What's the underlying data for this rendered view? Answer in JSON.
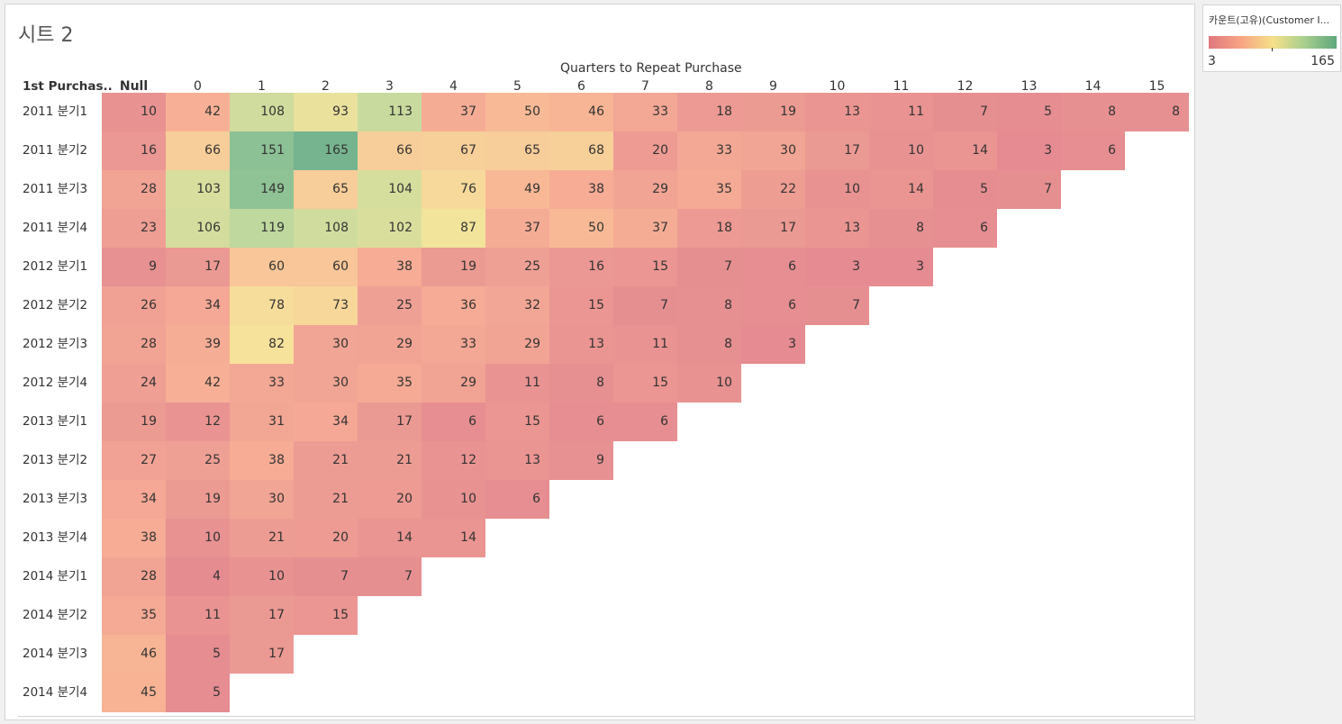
{
  "sheet": {
    "title": "시트 2"
  },
  "legend": {
    "title": "카운트(고유)(Customer I...",
    "min": "3",
    "max": "165"
  },
  "chart_data": {
    "type": "heatmap",
    "xlabel": "Quarters to Repeat Purchase",
    "ylabel": "1st Purchas..",
    "columns": [
      "Null",
      "0",
      "1",
      "2",
      "3",
      "4",
      "5",
      "6",
      "7",
      "8",
      "9",
      "10",
      "11",
      "12",
      "13",
      "14",
      "15"
    ],
    "rows": [
      "2011 분기1",
      "2011 분기2",
      "2011 분기3",
      "2011 분기4",
      "2012 분기1",
      "2012 분기2",
      "2012 분기3",
      "2012 분기4",
      "2013 분기1",
      "2013 분기2",
      "2013 분기3",
      "2013 분기4",
      "2014 분기1",
      "2014 분기2",
      "2014 분기3",
      "2014 분기4"
    ],
    "values": [
      [
        10,
        42,
        108,
        93,
        113,
        37,
        50,
        46,
        33,
        18,
        19,
        13,
        11,
        7,
        5,
        8,
        8
      ],
      [
        16,
        66,
        151,
        165,
        66,
        67,
        65,
        68,
        20,
        33,
        30,
        17,
        10,
        14,
        3,
        6
      ],
      [
        28,
        103,
        149,
        65,
        104,
        76,
        49,
        38,
        29,
        35,
        22,
        10,
        14,
        5,
        7
      ],
      [
        23,
        106,
        119,
        108,
        102,
        87,
        37,
        50,
        37,
        18,
        17,
        13,
        8,
        6
      ],
      [
        9,
        17,
        60,
        60,
        38,
        19,
        25,
        16,
        15,
        7,
        6,
        3,
        3
      ],
      [
        26,
        34,
        78,
        73,
        25,
        36,
        32,
        15,
        7,
        8,
        6,
        7
      ],
      [
        28,
        39,
        82,
        30,
        29,
        33,
        29,
        13,
        11,
        8,
        3
      ],
      [
        24,
        42,
        33,
        30,
        35,
        29,
        11,
        8,
        15,
        10
      ],
      [
        19,
        12,
        31,
        34,
        17,
        6,
        15,
        6,
        6
      ],
      [
        27,
        25,
        38,
        21,
        21,
        12,
        13,
        9
      ],
      [
        34,
        19,
        30,
        21,
        20,
        10,
        6
      ],
      [
        38,
        10,
        21,
        20,
        14,
        14
      ],
      [
        28,
        4,
        10,
        7,
        7
      ],
      [
        35,
        11,
        17,
        15
      ],
      [
        46,
        5,
        17
      ],
      [
        45,
        5
      ]
    ],
    "color_range": [
      3,
      165
    ],
    "colors": [
      "#e0777e",
      "#f7a483",
      "#f6e08a",
      "#a8cf8e",
      "#5ea77b"
    ]
  }
}
